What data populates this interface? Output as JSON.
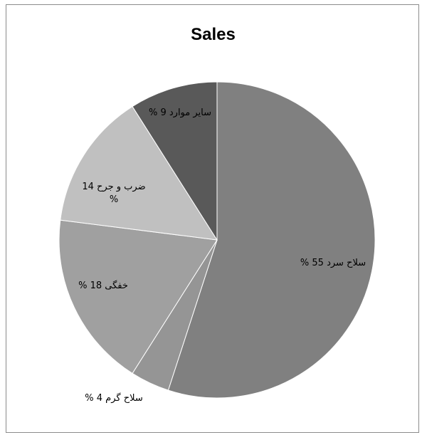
{
  "chart_data": {
    "type": "pie",
    "title": "Sales",
    "slices": [
      {
        "label": "سلاح سرد 55 %",
        "value": 55,
        "color": "#808080"
      },
      {
        "label": "سلاح گرم 4 %",
        "value": 4,
        "color": "#959595"
      },
      {
        "label": "خفگی 18 %",
        "value": 18,
        "color": "#a0a0a0"
      },
      {
        "label_lines": [
          "ضرب و جرح 14",
          "%"
        ],
        "value": 14,
        "color": "#c0c0c0"
      },
      {
        "label": "سایر موارد 9 %",
        "value": 9,
        "color": "#595959"
      }
    ]
  }
}
